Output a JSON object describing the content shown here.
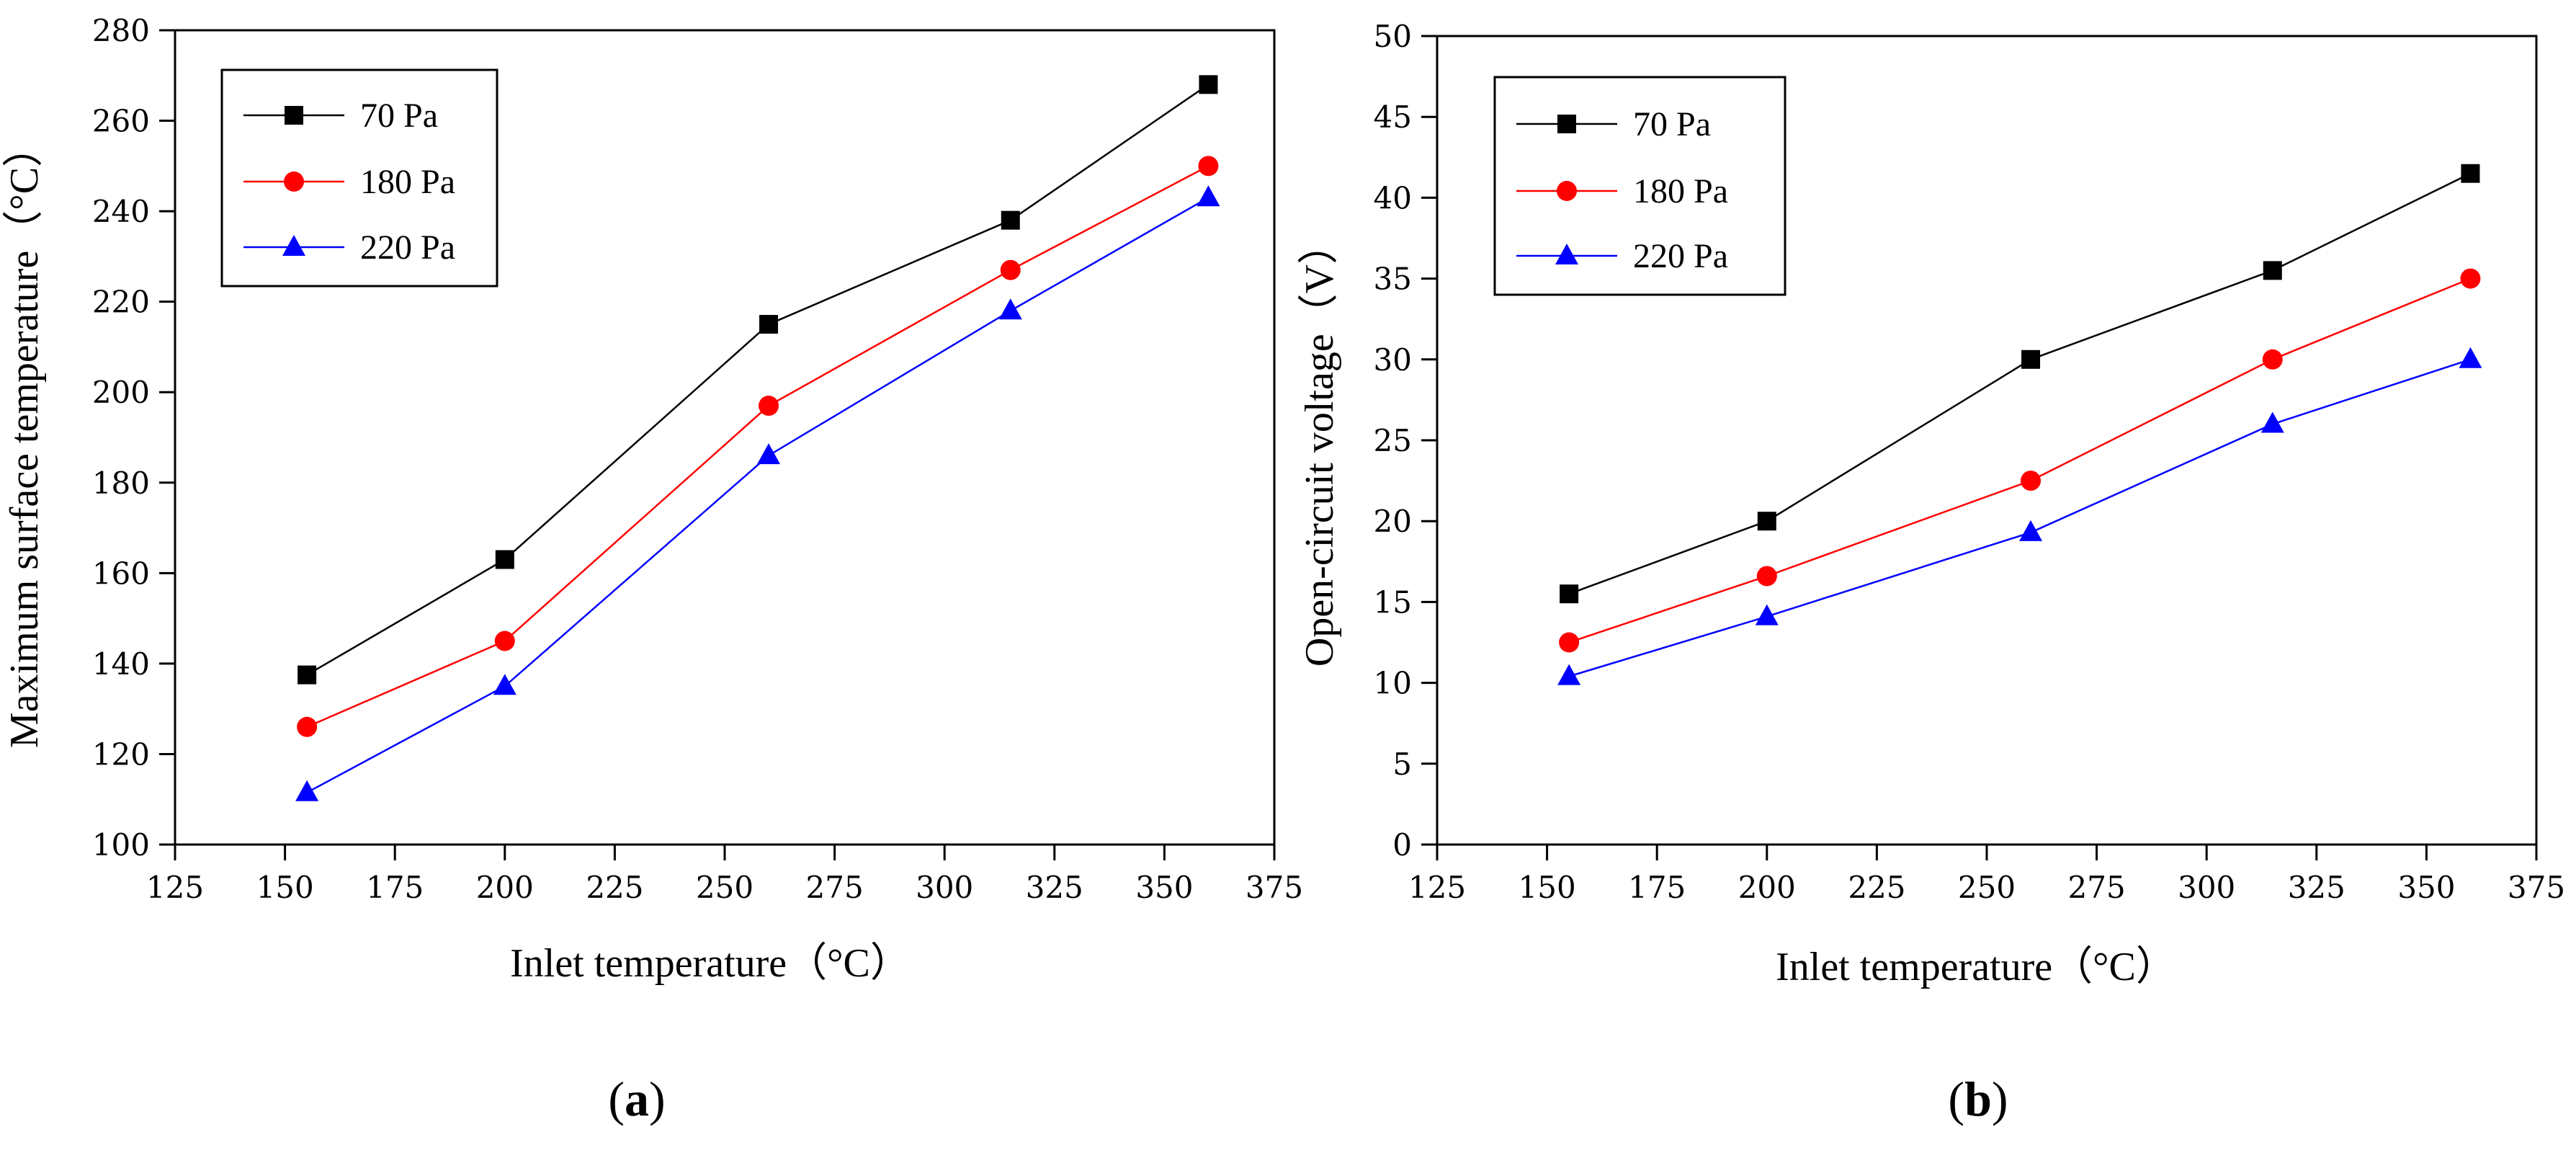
{
  "chart_data": [
    {
      "id": "a",
      "type": "line",
      "panel_label_open": "(",
      "panel_label_letter": "a",
      "panel_label_close": ")",
      "xlabel": "Inlet temperature（°C）",
      "ylabel": "Maximum surface temperature（°C）",
      "xlim": [
        125,
        375
      ],
      "ylim": [
        100,
        280
      ],
      "xticks": [
        125,
        150,
        175,
        200,
        225,
        250,
        275,
        300,
        325,
        350,
        375
      ],
      "yticks": [
        100,
        120,
        140,
        160,
        180,
        200,
        220,
        240,
        260,
        280
      ],
      "x": [
        155,
        200,
        260,
        315,
        360
      ],
      "legend_position": "top-left",
      "series": [
        {
          "name": "70 Pa",
          "color": "#000000",
          "marker": "square",
          "values": [
            137.5,
            163,
            215,
            238,
            268
          ]
        },
        {
          "name": "180 Pa",
          "color": "#ff0000",
          "marker": "circle",
          "values": [
            126,
            145,
            197,
            227,
            250
          ]
        },
        {
          "name": "220 Pa",
          "color": "#0000ff",
          "marker": "triangle",
          "values": [
            111.5,
            135,
            186,
            218,
            243
          ]
        }
      ]
    },
    {
      "id": "b",
      "type": "line",
      "panel_label_open": "(",
      "panel_label_letter": "b",
      "panel_label_close": ")",
      "xlabel": "Inlet temperature（°C）",
      "ylabel": "Open-circuit voltage（V）",
      "xlim": [
        125,
        375
      ],
      "ylim": [
        0,
        50
      ],
      "xticks": [
        125,
        150,
        175,
        200,
        225,
        250,
        275,
        300,
        325,
        350,
        375
      ],
      "yticks": [
        0,
        5,
        10,
        15,
        20,
        25,
        30,
        35,
        40,
        45,
        50
      ],
      "x": [
        155,
        200,
        260,
        315,
        360
      ],
      "legend_position": "top-left",
      "series": [
        {
          "name": "70 Pa",
          "color": "#000000",
          "marker": "square",
          "values": [
            15.5,
            20,
            30,
            35.5,
            41.5
          ]
        },
        {
          "name": "180 Pa",
          "color": "#ff0000",
          "marker": "circle",
          "values": [
            12.5,
            16.6,
            22.5,
            30,
            35
          ]
        },
        {
          "name": "220 Pa",
          "color": "#0000ff",
          "marker": "triangle",
          "values": [
            10.4,
            14.1,
            19.3,
            26,
            30
          ]
        }
      ]
    }
  ]
}
